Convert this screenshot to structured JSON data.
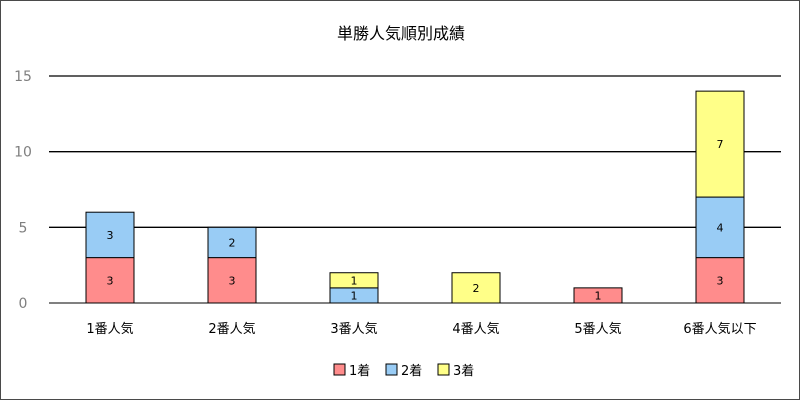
{
  "chart_data": {
    "type": "bar",
    "stacked": true,
    "title": "単勝人気順別成績",
    "categories": [
      "1番人気",
      "2番人気",
      "3番人気",
      "4番人気",
      "5番人気",
      "6番人気以下"
    ],
    "series": [
      {
        "name": "1着",
        "color": "#ff8c8c",
        "values": [
          3,
          3,
          0,
          0,
          1,
          3
        ]
      },
      {
        "name": "2着",
        "color": "#99ccf5",
        "values": [
          3,
          2,
          1,
          0,
          0,
          4
        ]
      },
      {
        "name": "3着",
        "color": "#ffff88",
        "values": [
          0,
          0,
          1,
          2,
          0,
          7
        ]
      }
    ],
    "yticks": [
      0,
      5,
      10,
      15
    ],
    "ylim": [
      0,
      15
    ],
    "xlabel": "",
    "ylabel": "",
    "grid": true,
    "legend_position": "bottom"
  }
}
